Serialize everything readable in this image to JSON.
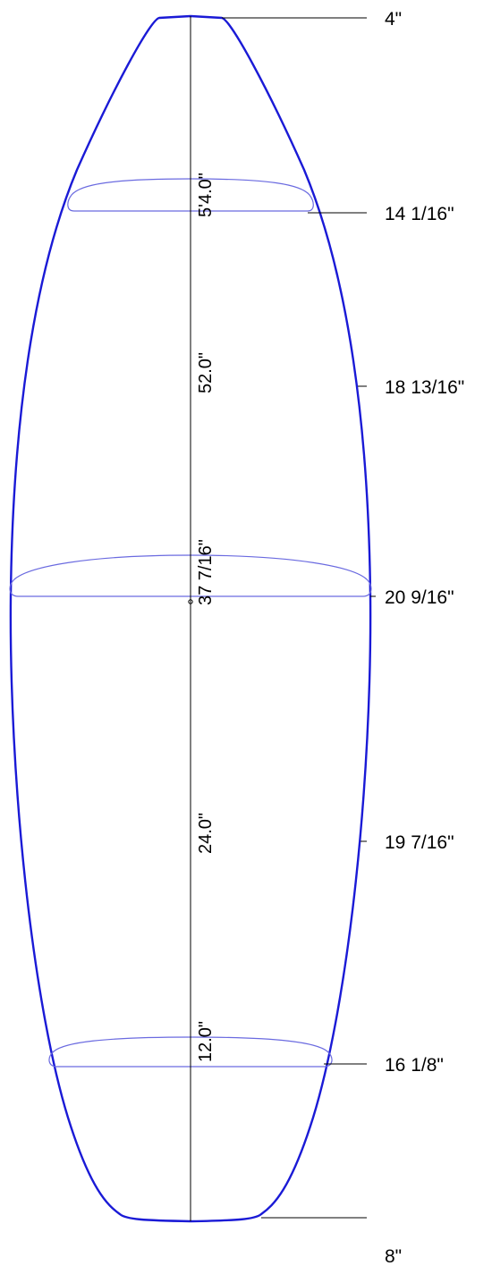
{
  "board": {
    "outline_color": "#1a1ad6",
    "section_color": "#6a6ae0",
    "line_color": "#000000",
    "widths": {
      "nose": "4\"",
      "nose_12": "14 1/16\"",
      "quarter_nose": "18 13/16\"",
      "wide_point": "20 9/16\"",
      "quarter_tail": "19 7/16\"",
      "tail_12": "16 1/8\"",
      "tail": "8\""
    },
    "stations": {
      "nose_station": "5'4.0\"",
      "upper_station": "52.0\"",
      "wide_point_station": "37 7/16\"",
      "lower_station": "24.0\"",
      "tail_station": "12.0\""
    }
  }
}
